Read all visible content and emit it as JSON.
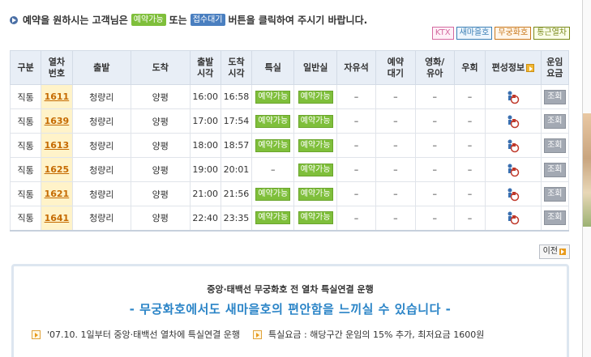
{
  "notice": {
    "before": "예약을 원하시는 고객님은",
    "badge_reserve": "예약가능",
    "middle": "또는",
    "badge_wait": "접수대기",
    "after": "버튼을 클릭하여 주시기 바랍니다."
  },
  "legend": [
    "KTX",
    "새마을호",
    "무궁화호",
    "통근열차"
  ],
  "colors": {
    "seat_button": "#7fbf3b",
    "train_no_bg": "#fff3c9",
    "header_bg": "#e8eef6",
    "promo_title": "#2a84c7"
  },
  "table": {
    "headers": [
      "구분",
      "열차\n번호",
      "출발",
      "도착",
      "출발\n시각",
      "도착\n시각",
      "특실",
      "일반실",
      "자유석",
      "예약\n대기",
      "영화/\n유아",
      "우회",
      "편성정보",
      "운임\n요금"
    ],
    "rows": [
      {
        "type": "직통",
        "train_no": "1611",
        "from": "청량리",
        "to": "양평",
        "dep": "16:00",
        "arr": "16:58",
        "first": "예약가능",
        "standard": "예약가능",
        "free": "–",
        "wait": "–",
        "movie": "–",
        "detour": "–",
        "fare": "조회"
      },
      {
        "type": "직통",
        "train_no": "1639",
        "from": "청량리",
        "to": "양평",
        "dep": "17:00",
        "arr": "17:54",
        "first": "예약가능",
        "standard": "예약가능",
        "free": "–",
        "wait": "–",
        "movie": "–",
        "detour": "–",
        "fare": "조회"
      },
      {
        "type": "직통",
        "train_no": "1613",
        "from": "청량리",
        "to": "양평",
        "dep": "18:00",
        "arr": "18:57",
        "first": "예약가능",
        "standard": "예약가능",
        "free": "–",
        "wait": "–",
        "movie": "–",
        "detour": "–",
        "fare": "조회"
      },
      {
        "type": "직통",
        "train_no": "1625",
        "from": "청량리",
        "to": "양평",
        "dep": "19:00",
        "arr": "20:01",
        "first": "–",
        "standard": "예약가능",
        "free": "–",
        "wait": "–",
        "movie": "–",
        "detour": "–",
        "fare": "조회"
      },
      {
        "type": "직통",
        "train_no": "1621",
        "from": "청량리",
        "to": "양평",
        "dep": "21:00",
        "arr": "21:56",
        "first": "예약가능",
        "standard": "예약가능",
        "free": "–",
        "wait": "–",
        "movie": "–",
        "detour": "–",
        "fare": "조회"
      },
      {
        "type": "직통",
        "train_no": "1641",
        "from": "청량리",
        "to": "양평",
        "dep": "22:40",
        "arr": "23:35",
        "first": "예약가능",
        "standard": "예약가능",
        "free": "–",
        "wait": "–",
        "movie": "–",
        "detour": "–",
        "fare": "조회"
      }
    ]
  },
  "prev_button": "이전",
  "promo": {
    "subtitle": "중앙·태백선 무궁화호 전 열차 특실연결 운행",
    "title": "- 무궁화호에서도 새마을호의 편안함을 느끼실 수 있습니다 -",
    "notes": [
      "'07.10. 1일부터 중앙·태백선 열차에 특실연결 운행",
      "특실요금 : 해당구간 운임의 15% 추가, 최저요금 1600원"
    ]
  }
}
